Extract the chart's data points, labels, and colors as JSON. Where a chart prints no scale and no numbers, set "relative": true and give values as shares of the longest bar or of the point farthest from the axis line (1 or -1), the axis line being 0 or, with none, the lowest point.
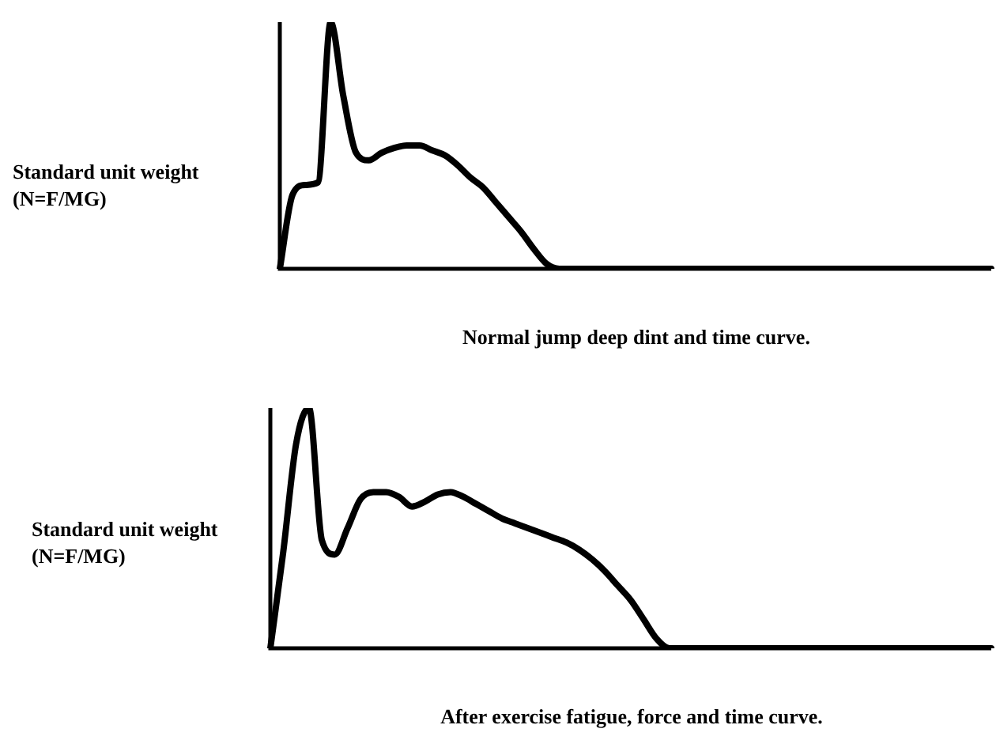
{
  "chart_data": [
    {
      "type": "line",
      "title": "Normal jump deep dint and time curve.",
      "ylabel": "Standard unit weight (N=F/MG)",
      "relative": true,
      "grid": false,
      "legend": false,
      "marker": "none",
      "line_style": "solid",
      "categories": [
        null,
        null,
        null,
        null,
        null,
        null,
        null,
        null,
        null,
        null,
        null,
        null,
        null,
        null,
        null,
        null,
        null,
        null,
        null,
        null,
        null,
        null,
        null,
        null,
        null,
        null,
        null,
        null,
        null,
        null,
        null,
        null,
        null,
        null,
        null,
        null,
        null,
        null,
        null,
        null,
        null,
        null,
        null,
        null,
        null,
        null,
        null,
        null,
        null,
        null,
        null,
        null,
        null,
        null,
        null,
        null,
        null
      ],
      "series": [
        {
          "color": "#000000",
          "values": [
            0,
            0.3,
            0.34,
            0.35,
            1,
            0.7,
            0.47,
            0.44,
            0.47,
            0.49,
            0.5,
            0.5,
            0.48,
            0.46,
            0.42,
            0.37,
            0.33,
            0.27,
            0.21,
            0.15,
            0.08,
            0.02,
            0,
            0,
            0,
            0,
            0,
            0,
            0,
            0,
            0,
            0,
            0,
            0,
            0,
            0,
            0,
            0,
            0,
            0,
            0,
            0,
            0,
            0,
            0,
            0,
            0,
            0,
            0,
            0,
            0,
            0,
            0,
            0,
            0,
            0,
            0
          ]
        }
      ]
    },
    {
      "type": "line",
      "title": "After exercise fatigue, force and time curve.",
      "ylabel": "Standard unit weight (N=F/MG)",
      "relative": true,
      "grid": false,
      "legend": false,
      "marker": "none",
      "line_style": "solid",
      "categories": [
        null,
        null,
        null,
        null,
        null,
        null,
        null,
        null,
        null,
        null,
        null,
        null,
        null,
        null,
        null,
        null,
        null,
        null,
        null,
        null,
        null,
        null,
        null,
        null,
        null,
        null,
        null,
        null,
        null,
        null,
        null,
        null,
        null,
        null,
        null,
        null,
        null,
        null,
        null,
        null,
        null,
        null,
        null,
        null,
        null,
        null,
        null,
        null,
        null,
        null,
        null,
        null,
        null,
        null,
        null,
        null,
        null
      ],
      "series": [
        {
          "color": "#000000",
          "values": [
            0,
            0.4,
            0.85,
            1,
            0.45,
            0.39,
            0.5,
            0.62,
            0.65,
            0.65,
            0.63,
            0.59,
            0.61,
            0.64,
            0.65,
            0.63,
            0.6,
            0.57,
            0.54,
            0.52,
            0.5,
            0.48,
            0.46,
            0.44,
            0.41,
            0.37,
            0.32,
            0.26,
            0.2,
            0.12,
            0.04,
            0,
            0,
            0,
            0,
            0,
            0,
            0,
            0,
            0,
            0,
            0,
            0,
            0,
            0,
            0,
            0,
            0,
            0,
            0,
            0,
            0,
            0,
            0,
            0,
            0,
            0
          ]
        }
      ]
    }
  ]
}
